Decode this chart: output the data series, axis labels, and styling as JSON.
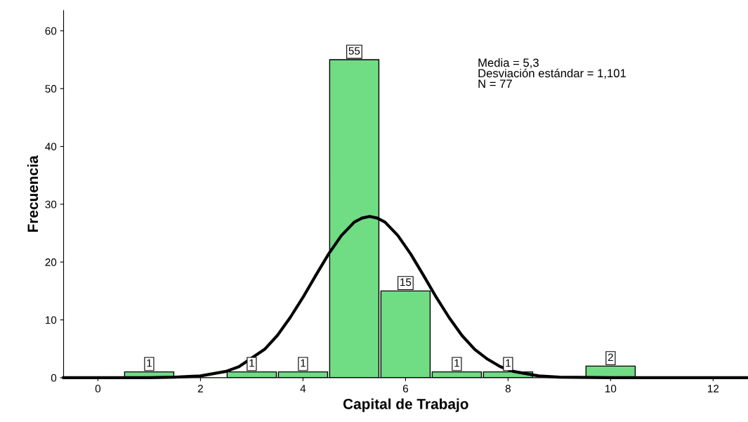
{
  "chart_data": {
    "type": "histogram",
    "xlabel": "Capital de Trabajo",
    "ylabel": "Frecuencia",
    "bins": [
      0.5,
      1.5,
      2.5,
      3.5,
      4.5,
      5.5,
      6.5,
      7.5,
      8.5,
      9.5,
      10.5
    ],
    "values": [
      1,
      0,
      1,
      1,
      55,
      15,
      1,
      1,
      0,
      2
    ],
    "value_labels": [
      "1",
      null,
      "1",
      "1",
      "55",
      "15",
      "1",
      "1",
      null,
      "2"
    ],
    "color": "#70dc84",
    "series": [
      {
        "type": "line",
        "color": "#000000",
        "x": [
          -0.67,
          0,
          1,
          1.5,
          2,
          2.5,
          2.75,
          3.25,
          3.5,
          3.75,
          4,
          4.25,
          4.5,
          4.75,
          5,
          5.15,
          5.3,
          5.45,
          5.6,
          5.85,
          6.1,
          6.35,
          6.6,
          6.85,
          7.1,
          7.35,
          7.6,
          7.85,
          8.1,
          8.6,
          9,
          10,
          12.68
        ],
        "values": [
          0,
          0,
          0,
          0.1,
          0.3,
          1.1,
          1.9,
          4.9,
          7.3,
          10.4,
          13.9,
          17.7,
          21.4,
          24.6,
          26.9,
          27.6,
          27.9,
          27.6,
          26.9,
          24.6,
          21.4,
          17.7,
          13.9,
          10.4,
          7.3,
          4.9,
          3.2,
          1.9,
          1.1,
          0.3,
          0.1,
          0,
          0
        ]
      }
    ],
    "xlim": [
      -0.67,
      12.68
    ],
    "xticks": [
      0,
      2,
      4,
      6,
      8,
      10,
      12
    ],
    "ylim": [
      0,
      63.5
    ],
    "yticks": [
      0,
      10,
      20,
      30,
      40,
      50,
      60
    ],
    "grid": false,
    "legend": false,
    "annotations": [
      "Media = 5,3\nDesviación estándar = 1,101\nN = 77"
    ]
  }
}
